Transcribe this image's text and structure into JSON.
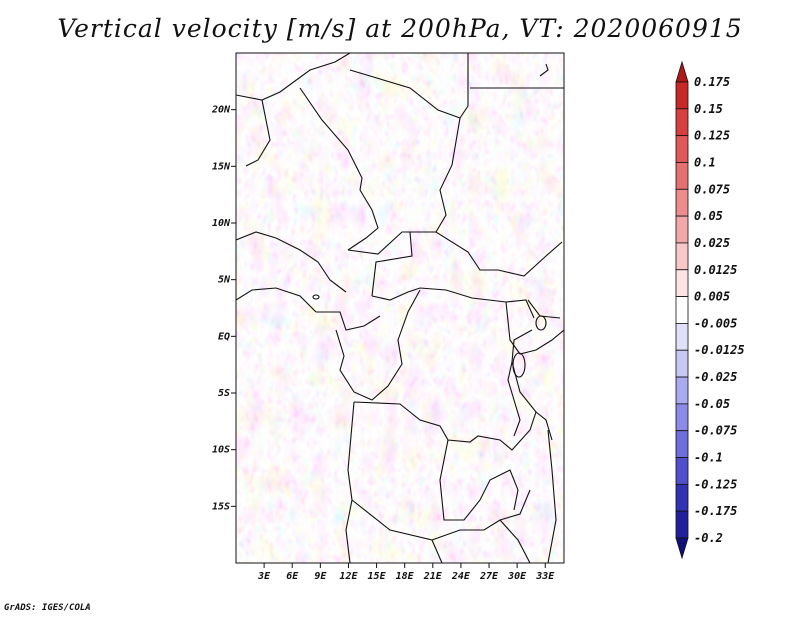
{
  "title": "Vertical velocity [m/s] at 200hPa, VT: 2020060915",
  "credit": "GrADS: IGES/COLA",
  "map": {
    "lat_labels": [
      "20N",
      "15N",
      "10N",
      "5N",
      "EQ",
      "5S",
      "10S",
      "15S"
    ],
    "lat_values": [
      20,
      15,
      10,
      5,
      0,
      -5,
      -10,
      -15
    ],
    "lon_labels": [
      "3E",
      "6E",
      "9E",
      "12E",
      "15E",
      "18E",
      "21E",
      "24E",
      "27E",
      "30E",
      "33E"
    ],
    "lon_values": [
      3,
      6,
      9,
      12,
      15,
      18,
      21,
      24,
      27,
      30,
      33
    ],
    "lon_range": [
      0,
      35
    ],
    "lat_range": [
      -20,
      25
    ]
  },
  "colorbar": {
    "labels": [
      "0.175",
      "0.15",
      "0.125",
      "0.1",
      "0.075",
      "0.05",
      "0.025",
      "0.0125",
      "0.005",
      "-0.005",
      "-0.0125",
      "-0.025",
      "-0.05",
      "-0.075",
      "-0.1",
      "-0.125",
      "-0.175",
      "-0.2"
    ],
    "colors": [
      "#b01818",
      "#c82828",
      "#d84040",
      "#e05858",
      "#e47070",
      "#ec8c8c",
      "#f2a8a8",
      "#f8c8c8",
      "#fce4e4",
      "#ffffff",
      "#e0e0fa",
      "#c8c8f6",
      "#aaaaf0",
      "#8c8ce8",
      "#6e6edc",
      "#5050cc",
      "#3232b4",
      "#20209a",
      "#10107a"
    ]
  }
}
